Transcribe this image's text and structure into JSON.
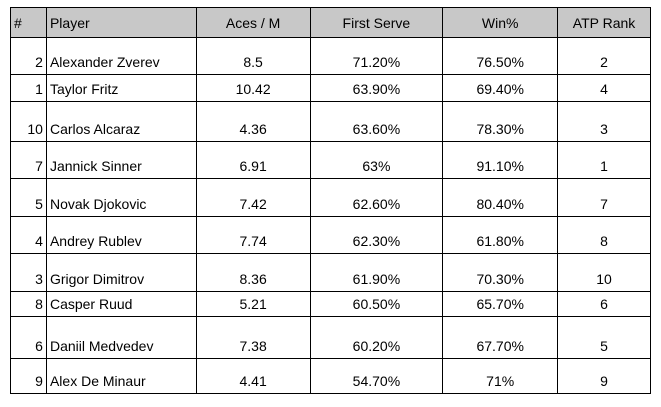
{
  "table": {
    "headers": [
      "#",
      "Player",
      "Aces / M",
      "First Serve",
      "Win%",
      "ATP Rank"
    ],
    "rows": [
      {
        "num": "2",
        "player": "Alexander Zverev",
        "aces": "8.5",
        "first_serve": "71.20%",
        "win": "76.50%",
        "rank": "2"
      },
      {
        "num": "1",
        "player": "Taylor Fritz",
        "aces": "10.42",
        "first_serve": "63.90%",
        "win": "69.40%",
        "rank": "4"
      },
      {
        "num": "10",
        "player": "Carlos Alcaraz",
        "aces": "4.36",
        "first_serve": "63.60%",
        "win": "78.30%",
        "rank": "3"
      },
      {
        "num": "7",
        "player": "Jannick Sinner",
        "aces": "6.91",
        "first_serve": "63%",
        "win": "91.10%",
        "rank": "1"
      },
      {
        "num": "5",
        "player": "Novak Djokovic",
        "aces": "7.42",
        "first_serve": "62.60%",
        "win": "80.40%",
        "rank": "7"
      },
      {
        "num": "4",
        "player": "Andrey Rublev",
        "aces": "7.74",
        "first_serve": "62.30%",
        "win": "61.80%",
        "rank": "8"
      },
      {
        "num": "3",
        "player": "Grigor Dimitrov",
        "aces": "8.36",
        "first_serve": "61.90%",
        "win": "70.30%",
        "rank": "10"
      },
      {
        "num": "8",
        "player": "Casper Ruud",
        "aces": "5.21",
        "first_serve": "60.50%",
        "win": "65.70%",
        "rank": "6"
      },
      {
        "num": "6",
        "player": "Daniil Medvedev",
        "aces": "7.38",
        "first_serve": "60.20%",
        "win": "67.70%",
        "rank": "5"
      },
      {
        "num": "9",
        "player": "Alex De Minaur",
        "aces": "4.41",
        "first_serve": "54.70%",
        "win": "71%",
        "rank": "9"
      }
    ]
  }
}
